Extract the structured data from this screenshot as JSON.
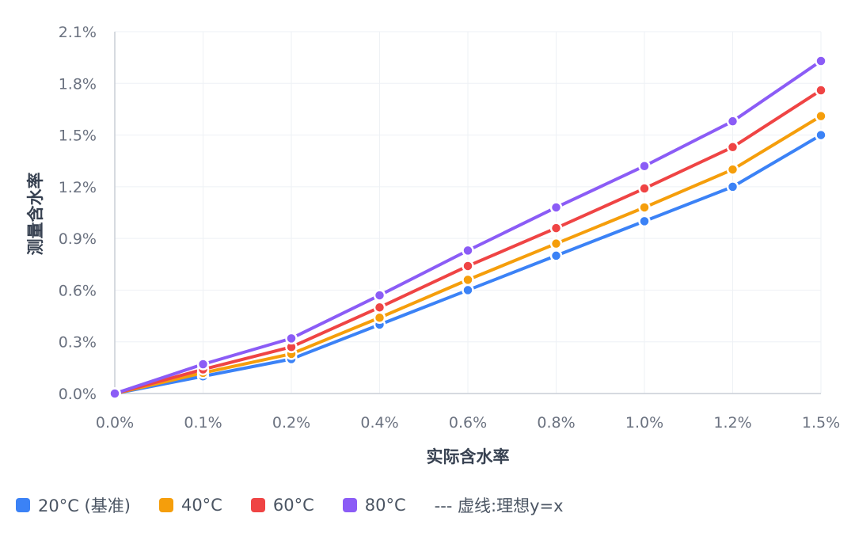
{
  "chart_data": {
    "type": "line",
    "xlabel": "实际含水率",
    "ylabel": "测量含水率",
    "categories": [
      "0.0%",
      "0.1%",
      "0.2%",
      "0.4%",
      "0.6%",
      "0.8%",
      "1.0%",
      "1.2%",
      "1.5%"
    ],
    "y_ticks": [
      "0.0%",
      "0.3%",
      "0.6%",
      "0.9%",
      "1.2%",
      "1.5%",
      "1.8%",
      "2.1%"
    ],
    "ylim": [
      0,
      2.1
    ],
    "grid": true,
    "legend_position": "bottom-left",
    "series": [
      {
        "name": "20°C (基准)",
        "color": "#3b82f6",
        "values": [
          0.0,
          0.1,
          0.2,
          0.4,
          0.6,
          0.8,
          1.0,
          1.2,
          1.5
        ]
      },
      {
        "name": "40°C",
        "color": "#f59e0b",
        "values": [
          0.0,
          0.12,
          0.23,
          0.44,
          0.66,
          0.87,
          1.08,
          1.3,
          1.61
        ]
      },
      {
        "name": "60°C",
        "color": "#ef4444",
        "values": [
          0.0,
          0.14,
          0.27,
          0.5,
          0.74,
          0.96,
          1.19,
          1.43,
          1.76
        ]
      },
      {
        "name": "80°C",
        "color": "#8b5cf6",
        "values": [
          0.0,
          0.17,
          0.32,
          0.57,
          0.83,
          1.08,
          1.32,
          1.58,
          1.93
        ]
      }
    ],
    "legend_note": "--- 虚线:理想y=x"
  }
}
